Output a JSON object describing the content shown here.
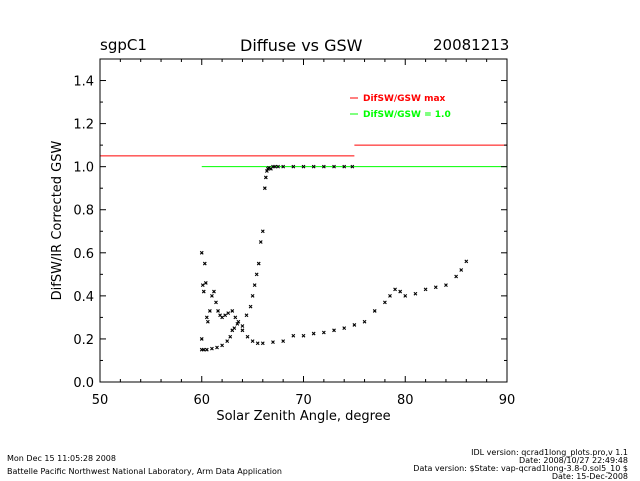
{
  "header": {
    "site": "sgpC1",
    "title": "Diffuse vs GSW",
    "date": "20081213"
  },
  "footer": {
    "run_date": "Mon Dec 15 11:05:28 2008",
    "lab": "Battelle Pacific Northwest National Laboratory, Arm Data Application",
    "idl_version": "IDL version: qcrad1long_plots.pro,v 1.1",
    "idl_date": "Date: 2008/10/27 22:49:48",
    "data_version": "Data version: $State: vap-qcrad1long-3.8-0.sol5_10 $",
    "data_date": "Date: 15-Dec-2008"
  },
  "colors": {
    "axis": "#000000",
    "max_line": "#ff0000",
    "unity_line": "#00ff00",
    "points": "#000000"
  },
  "chart_data": {
    "type": "scatter",
    "title": "Diffuse vs GSW",
    "xlabel": "Solar Zenith Angle, degree",
    "ylabel": "DifSW/IR Corrected GSW",
    "xlim": [
      50,
      90
    ],
    "ylim": [
      0.0,
      1.5
    ],
    "xticks": [
      50,
      60,
      70,
      80,
      90
    ],
    "xtick_labels": [
      "50",
      "60",
      "70",
      "80",
      "90"
    ],
    "yticks": [
      0.0,
      0.2,
      0.4,
      0.6,
      0.8,
      1.0,
      1.2,
      1.4
    ],
    "ytick_labels": [
      "0.0",
      "0.2",
      "0.4",
      "0.6",
      "0.8",
      "1.0",
      "1.2",
      "1.4"
    ],
    "legend": [
      {
        "label": "DifSW/GSW max",
        "color": "#ff0000"
      },
      {
        "label": "DifSW/GSW = 1.0",
        "color": "#00ff00"
      }
    ],
    "legend_position": "top-right",
    "lines": [
      {
        "name": "DifSW/GSW max",
        "color": "#ff0000",
        "segments": [
          [
            50,
            75,
            1.05
          ],
          [
            75,
            90,
            1.1
          ]
        ]
      },
      {
        "name": "DifSW/GSW = 1.0",
        "color": "#00ff00",
        "segments": [
          [
            60,
            90,
            1.0
          ]
        ]
      }
    ],
    "series": [
      {
        "name": "lower branch",
        "x": [
          60.0,
          60.2,
          60.5,
          61.0,
          61.5,
          62.0,
          62.5,
          62.8,
          63.0,
          63.2,
          63.5,
          64.0,
          64.5,
          65.0,
          65.5,
          66.0,
          67.0,
          68.0,
          69.0,
          70.0,
          71.0,
          72.0,
          73.0,
          74.0,
          75.0,
          76.0,
          77.0,
          78.0,
          78.5,
          79.0,
          79.5,
          80.0,
          81.0,
          82.0,
          83.0,
          84.0,
          85.0,
          85.5,
          86.0
        ],
        "y": [
          0.15,
          0.15,
          0.15,
          0.155,
          0.16,
          0.17,
          0.19,
          0.21,
          0.24,
          0.25,
          0.27,
          0.24,
          0.21,
          0.19,
          0.18,
          0.18,
          0.185,
          0.19,
          0.215,
          0.215,
          0.225,
          0.23,
          0.24,
          0.25,
          0.265,
          0.28,
          0.33,
          0.37,
          0.4,
          0.43,
          0.42,
          0.4,
          0.41,
          0.43,
          0.44,
          0.45,
          0.49,
          0.52,
          0.56
        ]
      },
      {
        "name": "upper branch",
        "x": [
          60.0,
          60.0,
          60.1,
          60.2,
          60.3,
          60.4,
          60.5,
          60.6,
          60.8,
          61.0,
          61.2,
          61.4,
          61.6,
          61.8,
          62.0,
          62.3,
          62.6,
          63.0,
          63.3,
          63.6,
          64.0,
          64.4,
          64.8,
          65.0,
          65.2,
          65.4,
          65.6,
          65.8,
          66.0,
          66.2,
          66.3,
          66.4,
          66.5,
          66.6,
          66.8,
          67.0,
          67.2,
          67.5,
          68.0,
          69.0,
          70.0,
          71.0,
          72.0,
          73.0,
          74.0,
          74.8
        ],
        "y": [
          0.2,
          0.6,
          0.45,
          0.42,
          0.55,
          0.46,
          0.3,
          0.28,
          0.33,
          0.4,
          0.42,
          0.37,
          0.33,
          0.31,
          0.3,
          0.31,
          0.32,
          0.33,
          0.3,
          0.28,
          0.26,
          0.31,
          0.35,
          0.4,
          0.45,
          0.5,
          0.55,
          0.65,
          0.7,
          0.9,
          0.95,
          0.98,
          0.99,
          0.995,
          0.99,
          1.0,
          1.0,
          1.0,
          1.0,
          1.0,
          1.0,
          1.0,
          1.0,
          1.0,
          1.0,
          1.0
        ]
      }
    ]
  }
}
